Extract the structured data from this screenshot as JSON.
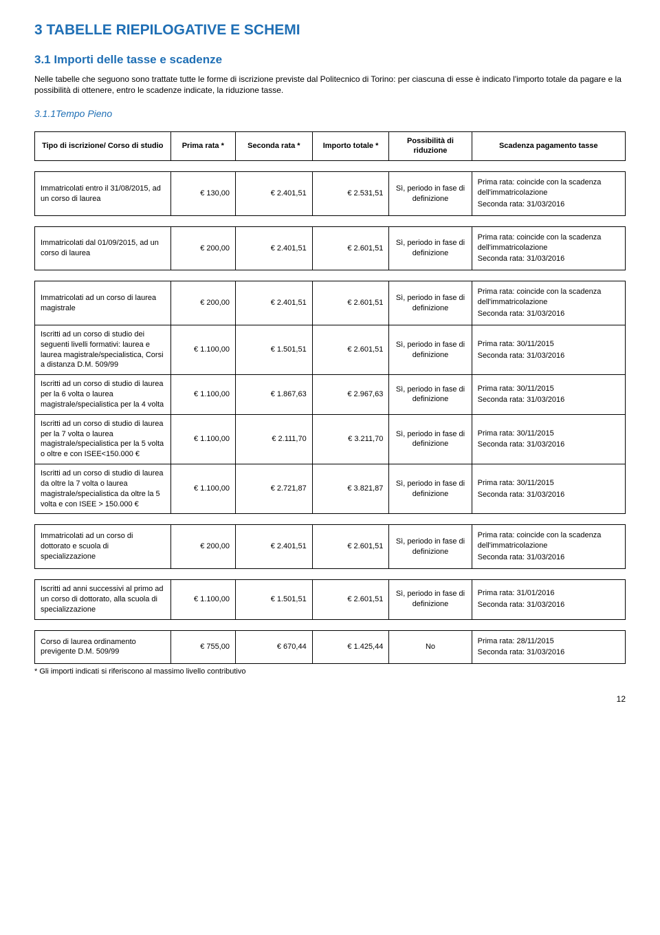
{
  "title": "3  TABELLE RIEPILOGATIVE E SCHEMI",
  "section_title": "3.1 Importi delle tasse e scadenze",
  "intro": "Nelle tabelle che seguono sono trattate tutte le forme di iscrizione previste dal Politecnico di Torino: per ciascuna di esse è indicato l'importo totale da pagare e la possibilità di ottenere, entro le scadenze indicate, la riduzione tasse.",
  "subheading": "3.1.1Tempo Pieno",
  "columns": [
    "Tipo di iscrizione/ Corso di studio",
    "Prima rata *",
    "Seconda rata *",
    "Importo totale *",
    "Possibilità di riduzione",
    "Scadenza pagamento tasse"
  ],
  "groups": [
    {
      "rows": [
        {
          "desc": "Immatricolati entro il 31/08/2015, ad un corso di laurea",
          "prima": "€ 130,00",
          "seconda": "€ 2.401,51",
          "totale": "€ 2.531,51",
          "riduzione": "Sì, periodo in fase di definizione",
          "sched1": "Prima rata: coincide con la scadenza dell'immatricolazione",
          "sched2": "Seconda rata: 31/03/2016"
        }
      ]
    },
    {
      "rows": [
        {
          "desc": "Immatricolati dal 01/09/2015, ad un corso di laurea",
          "prima": "€ 200,00",
          "seconda": "€ 2.401,51",
          "totale": "€ 2.601,51",
          "riduzione": "Sì, periodo in fase di definizione",
          "sched1": "Prima rata: coincide con la scadenza dell'immatricolazione",
          "sched2": "Seconda rata: 31/03/2016"
        }
      ]
    },
    {
      "rows": [
        {
          "desc": "Immatricolati ad un corso di laurea magistrale",
          "prima": "€ 200,00",
          "seconda": "€ 2.401,51",
          "totale": "€ 2.601,51",
          "riduzione": "Sì, periodo in fase di definizione",
          "sched1": "Prima rata: coincide con la scadenza dell'immatricolazione",
          "sched2": "Seconda rata: 31/03/2016"
        },
        {
          "desc": "Iscritti ad un corso di studio dei seguenti livelli formativi: laurea e laurea magistrale/specialistica, Corsi a distanza D.M. 509/99",
          "prima": "€ 1.100,00",
          "seconda": "€ 1.501,51",
          "totale": "€ 2.601,51",
          "riduzione": "Sì, periodo in fase di definizione",
          "sched1": "Prima rata: 30/11/2015",
          "sched2": "Seconda rata: 31/03/2016"
        },
        {
          "desc": "Iscritti ad un corso di studio di laurea per la 6 volta o laurea magistrale/specialistica per la 4 volta",
          "prima": "€ 1.100,00",
          "seconda": "€ 1.867,63",
          "totale": "€ 2.967,63",
          "riduzione": "Sì, periodo in fase di definizione",
          "sched1": "Prima rata: 30/11/2015",
          "sched2": "Seconda rata: 31/03/2016"
        },
        {
          "desc": "Iscritti ad un corso di studio di laurea per la 7 volta o laurea magistrale/specialistica per la 5 volta o oltre e con ISEE<150.000 €",
          "prima": "€ 1.100,00",
          "seconda": "€ 2.111,70",
          "totale": "€ 3.211,70",
          "riduzione": "Sì, periodo in fase di definizione",
          "sched1": "Prima rata: 30/11/2015",
          "sched2": "Seconda rata: 31/03/2016"
        },
        {
          "desc": "Iscritti ad un corso di studio di laurea da oltre la 7 volta o laurea magistrale/specialistica da oltre la 5 volta e con ISEE > 150.000 €",
          "prima": "€ 1.100,00",
          "seconda": "€ 2.721,87",
          "totale": "€ 3.821,87",
          "riduzione": "Sì, periodo in fase di definizione",
          "sched1": "Prima rata: 30/11/2015",
          "sched2": "Seconda rata: 31/03/2016"
        }
      ]
    },
    {
      "rows": [
        {
          "desc": "Immatricolati ad un corso di dottorato e scuola di specializzazione",
          "prima": "€ 200,00",
          "seconda": "€ 2.401,51",
          "totale": "€ 2.601,51",
          "riduzione": "Sì, periodo in fase di definizione",
          "sched1": "Prima rata: coincide con la scadenza dell'immatricolazione",
          "sched2": "Seconda rata: 31/03/2016"
        }
      ]
    },
    {
      "rows": [
        {
          "desc": "Iscritti ad anni successivi al primo ad un corso di dottorato, alla scuola di specializzazione",
          "prima": "€ 1.100,00",
          "seconda": "€ 1.501,51",
          "totale": "€ 2.601,51",
          "riduzione": "Sì, periodo in fase di definizione",
          "sched1": "Prima rata: 31/01/2016",
          "sched2": "Seconda rata: 31/03/2016"
        }
      ]
    },
    {
      "rows": [
        {
          "desc": "Corso di laurea ordinamento previgente D.M. 509/99",
          "prima": "€ 755,00",
          "seconda": "€ 670,44",
          "totale": "€ 1.425,44",
          "riduzione": "No",
          "sched1": "Prima rata: 28/11/2015",
          "sched2": "Seconda rata: 31/03/2016"
        }
      ]
    }
  ],
  "footnote": "* Gli importi indicati si riferiscono al massimo livello contributivo",
  "page_number": "12"
}
